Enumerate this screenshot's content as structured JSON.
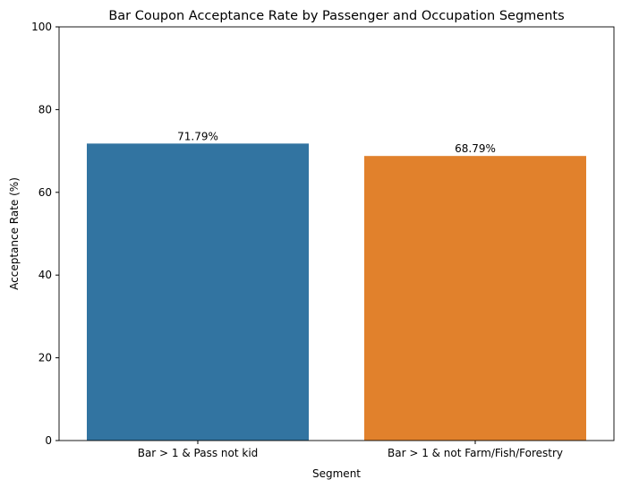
{
  "chart_data": {
    "type": "bar",
    "title": "Bar Coupon Acceptance Rate by Passenger and Occupation Segments",
    "xlabel": "Segment",
    "ylabel": "Acceptance Rate (%)",
    "categories": [
      "Bar > 1 & Pass not kid",
      "Bar > 1 & not Farm/Fish/Forestry"
    ],
    "values": [
      71.79,
      68.79
    ],
    "data_labels": [
      "71.79%",
      "68.79%"
    ],
    "colors": [
      "#3274a1",
      "#e1812c"
    ],
    "ylim": [
      0,
      100
    ],
    "yticks": [
      0,
      20,
      40,
      60,
      80,
      100
    ],
    "grid": false,
    "legend": "none"
  }
}
